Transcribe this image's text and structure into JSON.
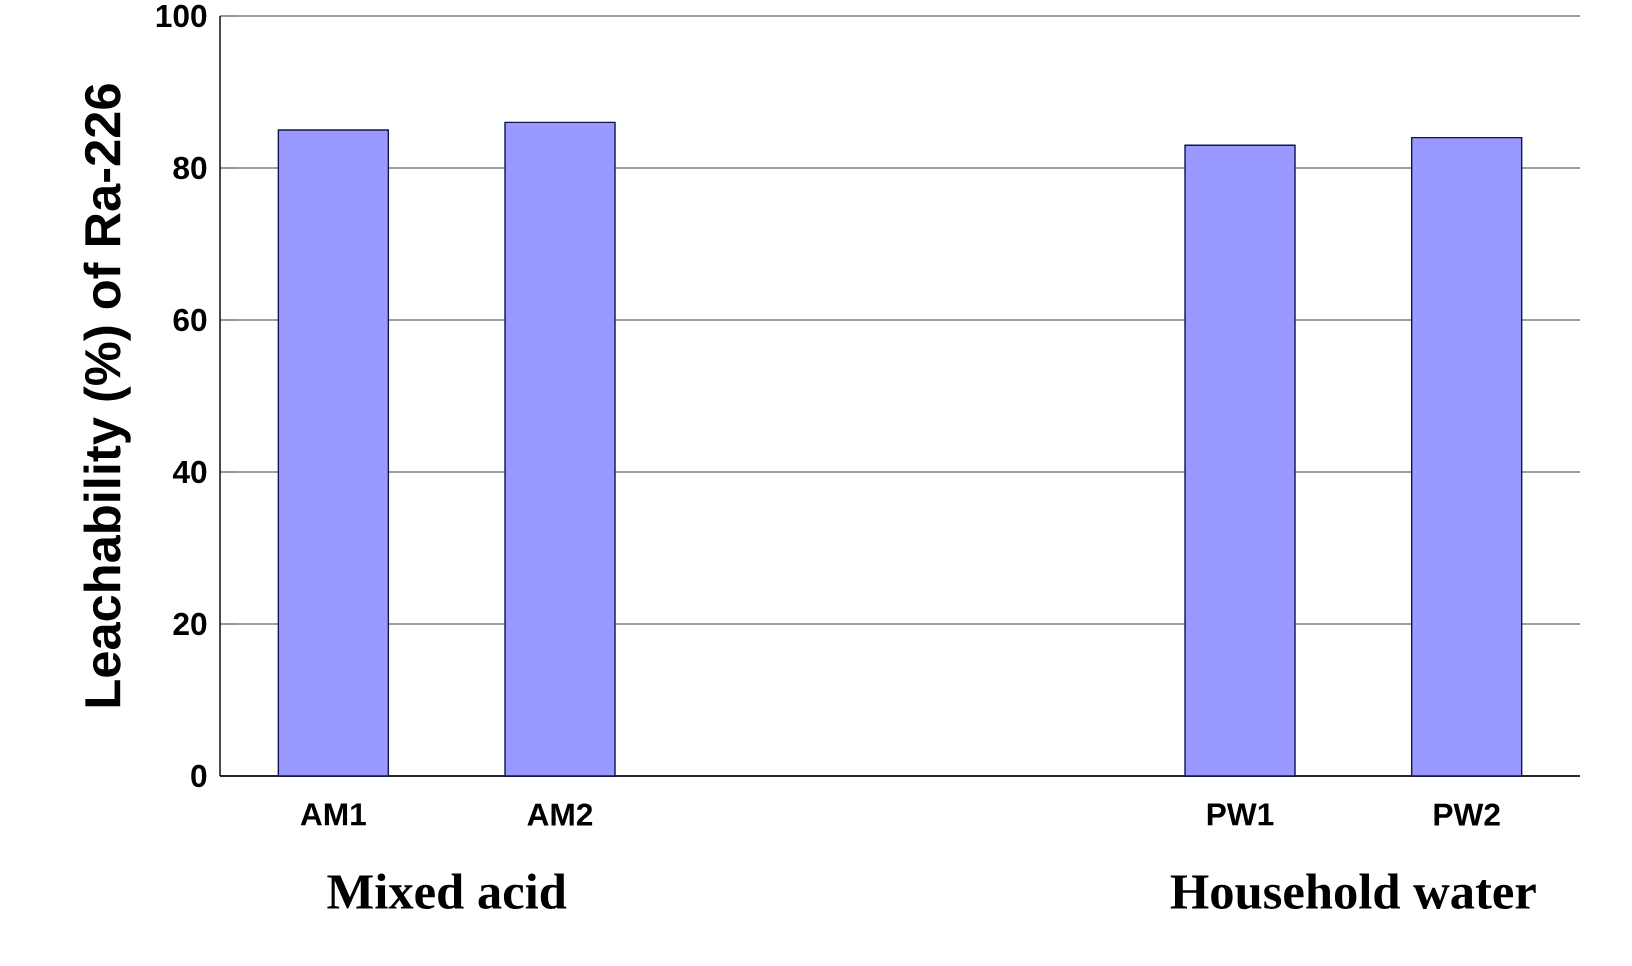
{
  "chart_data": {
    "type": "bar",
    "ylabel": "Leachability (%) of Ra-226",
    "categories": [
      "AM1",
      "AM2",
      null,
      null,
      "PW1",
      "PW2"
    ],
    "values": [
      85,
      86,
      null,
      null,
      83,
      84
    ],
    "color": "#9999ff",
    "ylim": [
      0,
      100
    ],
    "yticks": [
      0,
      20,
      40,
      60,
      80,
      100
    ],
    "grid": "y",
    "annotations": [
      "Mixed acid",
      "Household water"
    ]
  }
}
